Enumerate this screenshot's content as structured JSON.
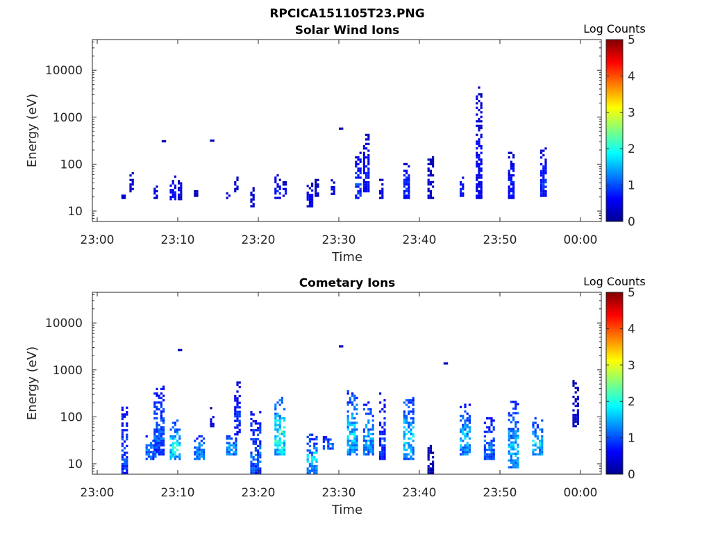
{
  "figure": {
    "title": "RPCICA151105T23.PNG"
  },
  "chart_data": [
    {
      "type": "heatmap",
      "title": "Solar Wind Ions",
      "xlabel": "Time",
      "ylabel": "Energy (eV)",
      "y_scale": "log",
      "ylim": [
        6,
        45000
      ],
      "y_ticks": [
        10,
        100,
        1000,
        10000
      ],
      "y_tick_labels": [
        "10",
        "100",
        "1000",
        "10000"
      ],
      "x_ticks": [
        "23:00",
        "23:10",
        "23:20",
        "23:30",
        "23:40",
        "23:50",
        "00:00"
      ],
      "colorbar": {
        "label": "Log Counts",
        "range": [
          0,
          5
        ],
        "ticks": [
          "0",
          "1",
          "2",
          "3",
          "4",
          "5"
        ],
        "colormap": "jet"
      },
      "clusters": [
        {
          "t": "23:03",
          "e_min": 18,
          "e_max": 22,
          "peak": 0.5
        },
        {
          "t": "23:04",
          "e_min": 25,
          "e_max": 65,
          "peak": 0.4
        },
        {
          "t": "23:07",
          "e_min": 18,
          "e_max": 32,
          "peak": 0.5
        },
        {
          "t": "23:08",
          "e_min": 290,
          "e_max": 320,
          "peak": 0.3
        },
        {
          "t": "23:09",
          "e_min": 17,
          "e_max": 55,
          "peak": 0.7
        },
        {
          "t": "23:10",
          "e_min": 17,
          "e_max": 45,
          "peak": 0.6
        },
        {
          "t": "23:12",
          "e_min": 20,
          "e_max": 26,
          "peak": 0.4
        },
        {
          "t": "23:14",
          "e_min": 300,
          "e_max": 330,
          "peak": 0.3
        },
        {
          "t": "23:16",
          "e_min": 18,
          "e_max": 35,
          "peak": 0.5
        },
        {
          "t": "23:17",
          "e_min": 25,
          "e_max": 55,
          "peak": 0.4
        },
        {
          "t": "23:19",
          "e_min": 12,
          "e_max": 30,
          "peak": 0.5
        },
        {
          "t": "23:22",
          "e_min": 18,
          "e_max": 55,
          "peak": 0.7
        },
        {
          "t": "23:23",
          "e_min": 20,
          "e_max": 40,
          "peak": 0.6
        },
        {
          "t": "23:26",
          "e_min": 12,
          "e_max": 40,
          "peak": 0.6
        },
        {
          "t": "23:27",
          "e_min": 20,
          "e_max": 45,
          "peak": 0.4
        },
        {
          "t": "23:29",
          "e_min": 22,
          "e_max": 45,
          "peak": 0.6
        },
        {
          "t": "23:30",
          "e_min": 540,
          "e_max": 560,
          "peak": 0.3
        },
        {
          "t": "23:32",
          "e_min": 18,
          "e_max": 170,
          "peak": 0.9
        },
        {
          "t": "23:33",
          "e_min": 25,
          "e_max": 420,
          "peak": 0.7
        },
        {
          "t": "23:35",
          "e_min": 18,
          "e_max": 45,
          "peak": 0.5
        },
        {
          "t": "23:38",
          "e_min": 18,
          "e_max": 100,
          "peak": 0.8
        },
        {
          "t": "23:41",
          "e_min": 18,
          "e_max": 150,
          "peak": 0.4
        },
        {
          "t": "23:45",
          "e_min": 20,
          "e_max": 55,
          "peak": 0.7
        },
        {
          "t": "23:47",
          "e_min": 18,
          "e_max": 4400,
          "peak": 0.6
        },
        {
          "t": "23:51",
          "e_min": 18,
          "e_max": 170,
          "peak": 0.7
        },
        {
          "t": "23:55",
          "e_min": 20,
          "e_max": 210,
          "peak": 0.8
        }
      ]
    },
    {
      "type": "heatmap",
      "title": "Cometary Ions",
      "xlabel": "Time",
      "ylabel": "Energy (eV)",
      "y_scale": "log",
      "ylim": [
        6,
        45000
      ],
      "y_ticks": [
        10,
        100,
        1000,
        10000
      ],
      "y_tick_labels": [
        "10",
        "100",
        "1000",
        "10000"
      ],
      "x_ticks": [
        "23:00",
        "23:10",
        "23:20",
        "23:30",
        "23:40",
        "23:50",
        "00:00"
      ],
      "colorbar": {
        "label": "Log Counts",
        "range": [
          0,
          5
        ],
        "ticks": [
          "0",
          "1",
          "2",
          "3",
          "4",
          "5"
        ],
        "colormap": "jet"
      },
      "clusters": [
        {
          "t": "23:03",
          "e_min": 6,
          "e_max": 200,
          "peak": 1.0
        },
        {
          "t": "23:06",
          "e_min": 12,
          "e_max": 40,
          "peak": 1.2
        },
        {
          "t": "23:07",
          "e_min": 15,
          "e_max": 450,
          "peak": 1.1
        },
        {
          "t": "23:09",
          "e_min": 12,
          "e_max": 80,
          "peak": 1.8
        },
        {
          "t": "23:10",
          "e_min": 2500,
          "e_max": 2700,
          "peak": 0.3
        },
        {
          "t": "23:12",
          "e_min": 12,
          "e_max": 40,
          "peak": 1.3
        },
        {
          "t": "23:14",
          "e_min": 60,
          "e_max": 160,
          "peak": 0.5
        },
        {
          "t": "23:16",
          "e_min": 15,
          "e_max": 40,
          "peak": 1.4
        },
        {
          "t": "23:17",
          "e_min": 40,
          "e_max": 550,
          "peak": 0.8
        },
        {
          "t": "23:19",
          "e_min": 6,
          "e_max": 120,
          "peak": 1.1
        },
        {
          "t": "23:22",
          "e_min": 15,
          "e_max": 250,
          "peak": 1.9
        },
        {
          "t": "23:26",
          "e_min": 6,
          "e_max": 40,
          "peak": 1.6
        },
        {
          "t": "23:28",
          "e_min": 20,
          "e_max": 40,
          "peak": 1.2
        },
        {
          "t": "23:30",
          "e_min": 3000,
          "e_max": 3100,
          "peak": 0.3
        },
        {
          "t": "23:31",
          "e_min": 15,
          "e_max": 350,
          "peak": 1.6
        },
        {
          "t": "23:33",
          "e_min": 15,
          "e_max": 200,
          "peak": 1.4
        },
        {
          "t": "23:35",
          "e_min": 12,
          "e_max": 350,
          "peak": 0.9
        },
        {
          "t": "23:38",
          "e_min": 12,
          "e_max": 260,
          "peak": 1.6
        },
        {
          "t": "23:41",
          "e_min": 6,
          "e_max": 25,
          "peak": 0.3
        },
        {
          "t": "23:43",
          "e_min": 1300,
          "e_max": 1400,
          "peak": 0.3
        },
        {
          "t": "23:45",
          "e_min": 15,
          "e_max": 180,
          "peak": 1.5
        },
        {
          "t": "23:48",
          "e_min": 12,
          "e_max": 90,
          "peak": 1.2
        },
        {
          "t": "23:51",
          "e_min": 8,
          "e_max": 200,
          "peak": 1.5
        },
        {
          "t": "23:54",
          "e_min": 15,
          "e_max": 90,
          "peak": 1.6
        },
        {
          "t": "23:59",
          "e_min": 60,
          "e_max": 550,
          "peak": 0.4
        }
      ]
    }
  ]
}
